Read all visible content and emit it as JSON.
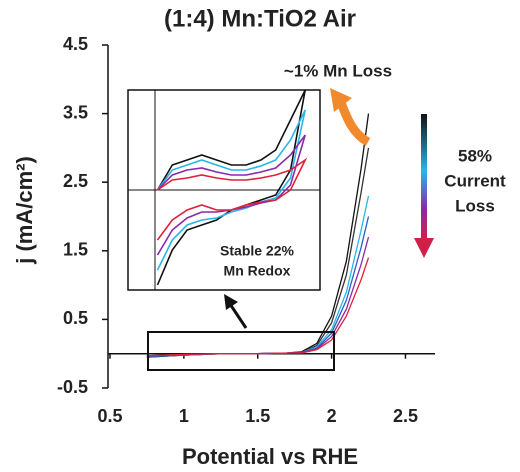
{
  "chart_data": [
    {
      "type": "line",
      "title": "(1:4) Mn:TiO2 Air",
      "x_label": "Potential vs RHE",
      "y_label": "j (mA/cm²)",
      "x": [
        0.75,
        1.0,
        1.25,
        1.5,
        1.7,
        1.8,
        1.9,
        2.0,
        2.1,
        2.2,
        2.25
      ],
      "series": [
        {
          "color": "#111111",
          "values": [
            -0.05,
            -0.02,
            0,
            0,
            0.01,
            0.03,
            0.15,
            0.55,
            1.35,
            2.7,
            3.5
          ]
        },
        {
          "color": "#333333",
          "values": [
            -0.05,
            -0.02,
            0,
            0,
            0.01,
            0.02,
            0.12,
            0.45,
            1.15,
            2.35,
            3.0
          ]
        },
        {
          "color": "#29b6e8",
          "values": [
            -0.04,
            -0.02,
            0,
            0,
            0.01,
            0.02,
            0.1,
            0.35,
            0.9,
            1.8,
            2.3
          ]
        },
        {
          "color": "#2a5fc8",
          "values": [
            -0.04,
            -0.02,
            0,
            0,
            0.01,
            0.02,
            0.08,
            0.3,
            0.78,
            1.55,
            2.0
          ]
        },
        {
          "color": "#8a2aa8",
          "values": [
            -0.03,
            -0.01,
            0,
            0,
            0.01,
            0.02,
            0.07,
            0.25,
            0.65,
            1.3,
            1.7
          ]
        },
        {
          "color": "#e0213a",
          "values": [
            -0.03,
            -0.01,
            0,
            0,
            0.01,
            0.01,
            0.06,
            0.2,
            0.55,
            1.08,
            1.4
          ]
        }
      ],
      "xlim": [
        0.5,
        2.7
      ],
      "ylim": [
        -0.5,
        4.5
      ],
      "xticks": [
        0.5,
        1,
        1.5,
        2,
        2.5
      ],
      "yticks": [
        -0.5,
        0.5,
        1.5,
        2.5,
        3.5,
        4.5
      ],
      "grid": false,
      "annotations": [
        [
          "~1% Mn Loss"
        ],
        [
          "58%",
          "Current",
          "Loss"
        ],
        [
          "Stable 22%",
          "Mn Redox"
        ]
      ]
    },
    {
      "type": "line",
      "x": [
        0.8,
        0.9,
        1.0,
        1.1,
        1.2,
        1.3,
        1.4,
        1.5,
        1.6,
        1.7,
        1.8,
        1.8,
        1.7,
        1.6,
        1.5,
        1.4,
        1.3,
        1.2,
        1.1,
        1.0,
        0.9,
        0.8
      ],
      "series": [
        {
          "color": "#111111",
          "values": [
            0.0,
            0.025,
            0.03,
            0.035,
            0.03,
            0.025,
            0.025,
            0.03,
            0.04,
            0.07,
            0.1,
            0.1,
            0.02,
            -0.005,
            -0.01,
            -0.015,
            -0.02,
            -0.03,
            -0.035,
            -0.04,
            -0.06,
            -0.095
          ]
        },
        {
          "color": "#29b6e8",
          "values": [
            0.0,
            0.02,
            0.025,
            0.03,
            0.025,
            0.02,
            0.02,
            0.024,
            0.03,
            0.05,
            0.08,
            0.08,
            0.012,
            -0.008,
            -0.012,
            -0.018,
            -0.022,
            -0.028,
            -0.03,
            -0.035,
            -0.05,
            -0.08
          ]
        },
        {
          "color": "#8a2aa8",
          "values": [
            0.0,
            0.015,
            0.02,
            0.022,
            0.018,
            0.015,
            0.015,
            0.018,
            0.022,
            0.035,
            0.055,
            0.055,
            0.005,
            -0.01,
            -0.013,
            -0.017,
            -0.02,
            -0.022,
            -0.022,
            -0.028,
            -0.04,
            -0.065
          ]
        },
        {
          "color": "#e0213a",
          "values": [
            0.0,
            0.01,
            0.012,
            0.015,
            0.012,
            0.01,
            0.01,
            0.012,
            0.015,
            0.02,
            0.03,
            0.03,
            0.0,
            -0.01,
            -0.012,
            -0.015,
            -0.02,
            -0.02,
            -0.015,
            -0.02,
            -0.03,
            -0.05
          ]
        }
      ],
      "xlim": [
        0.6,
        1.9
      ],
      "ylim": [
        -0.1,
        0.1
      ]
    }
  ]
}
